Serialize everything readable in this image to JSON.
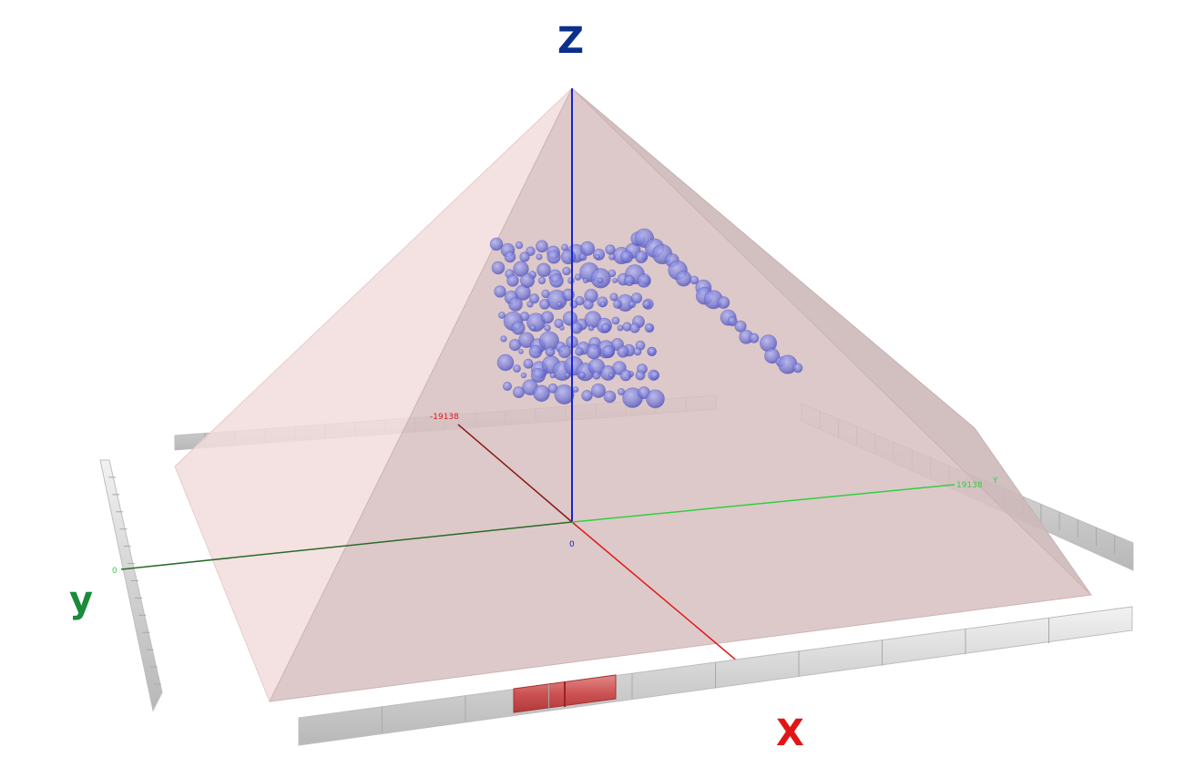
{
  "axes": {
    "z": {
      "title": "Z",
      "color": "#0b2f8a"
    },
    "y": {
      "title": "y",
      "color": "#1a8a3c"
    },
    "x": {
      "title": "X",
      "color": "#e31414"
    }
  },
  "tick_labels": {
    "x_far": "-19138",
    "y_right": "19138",
    "y_right_letter": "Y",
    "y_left": "0",
    "origin": "0"
  },
  "colors": {
    "pyramid_left": "#f2dcdc",
    "pyramid_front": "#d9bfbf",
    "pyramid_right": "#cdb9b9",
    "sphere": "#6f72d6",
    "scale_bar": "#d4d4d4",
    "scale_highlight": "#c94a4a",
    "z_axis": "#1a24c8",
    "x_axis": "#e01818",
    "y_axis": "#2fb83a"
  }
}
